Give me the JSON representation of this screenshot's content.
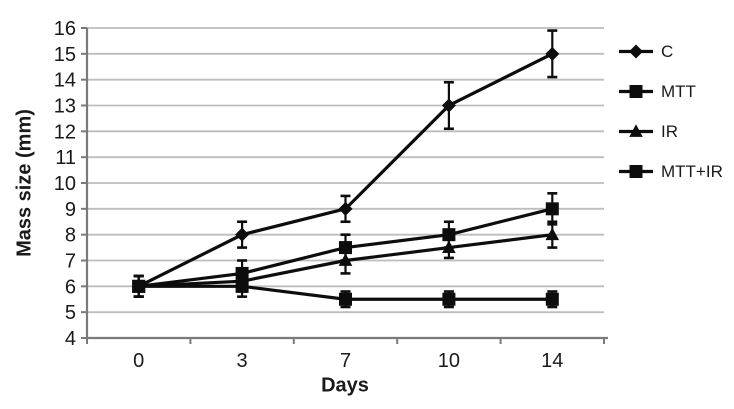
{
  "chart_data": {
    "type": "line",
    "title": "",
    "xlabel": "Days",
    "ylabel": "Mass size (mm)",
    "x_categories": [
      "0",
      "3",
      "7",
      "10",
      "14"
    ],
    "x_values": [
      0,
      3,
      7,
      10,
      14
    ],
    "ylim": [
      4,
      16
    ],
    "yticks": [
      16,
      15,
      14,
      13,
      12,
      11,
      10,
      9,
      8,
      7,
      6,
      5,
      4
    ],
    "grid": "horizontal",
    "legend_position": "right",
    "error_bars": true,
    "series": [
      {
        "name": "C",
        "marker": "diamond",
        "color": "#0d0d0d",
        "values": [
          6,
          8,
          9,
          13,
          15
        ],
        "errors": [
          0.4,
          0.5,
          0.5,
          0.9,
          0.9
        ]
      },
      {
        "name": "MTT",
        "marker": "square",
        "color": "#0d0d0d",
        "values": [
          6,
          6.5,
          7.5,
          8,
          9
        ],
        "errors": [
          0.4,
          0.5,
          0.5,
          0.5,
          0.6
        ]
      },
      {
        "name": "IR",
        "marker": "triangle",
        "color": "#0d0d0d",
        "values": [
          6,
          6.2,
          7,
          7.5,
          8
        ],
        "errors": [
          0.4,
          0.4,
          0.5,
          0.4,
          0.5
        ]
      },
      {
        "name": "MTT+IR",
        "marker": "square",
        "color": "#0d0d0d",
        "values": [
          6,
          6,
          5.5,
          5.5,
          5.5
        ],
        "errors": [
          0.4,
          0.4,
          0.3,
          0.3,
          0.3
        ]
      }
    ],
    "colors": {
      "series": "#0d0d0d",
      "gridline": "#bdbdbd",
      "axis": "#7a7a7a",
      "text": "#1a1a1a",
      "background": "#ffffff"
    }
  }
}
